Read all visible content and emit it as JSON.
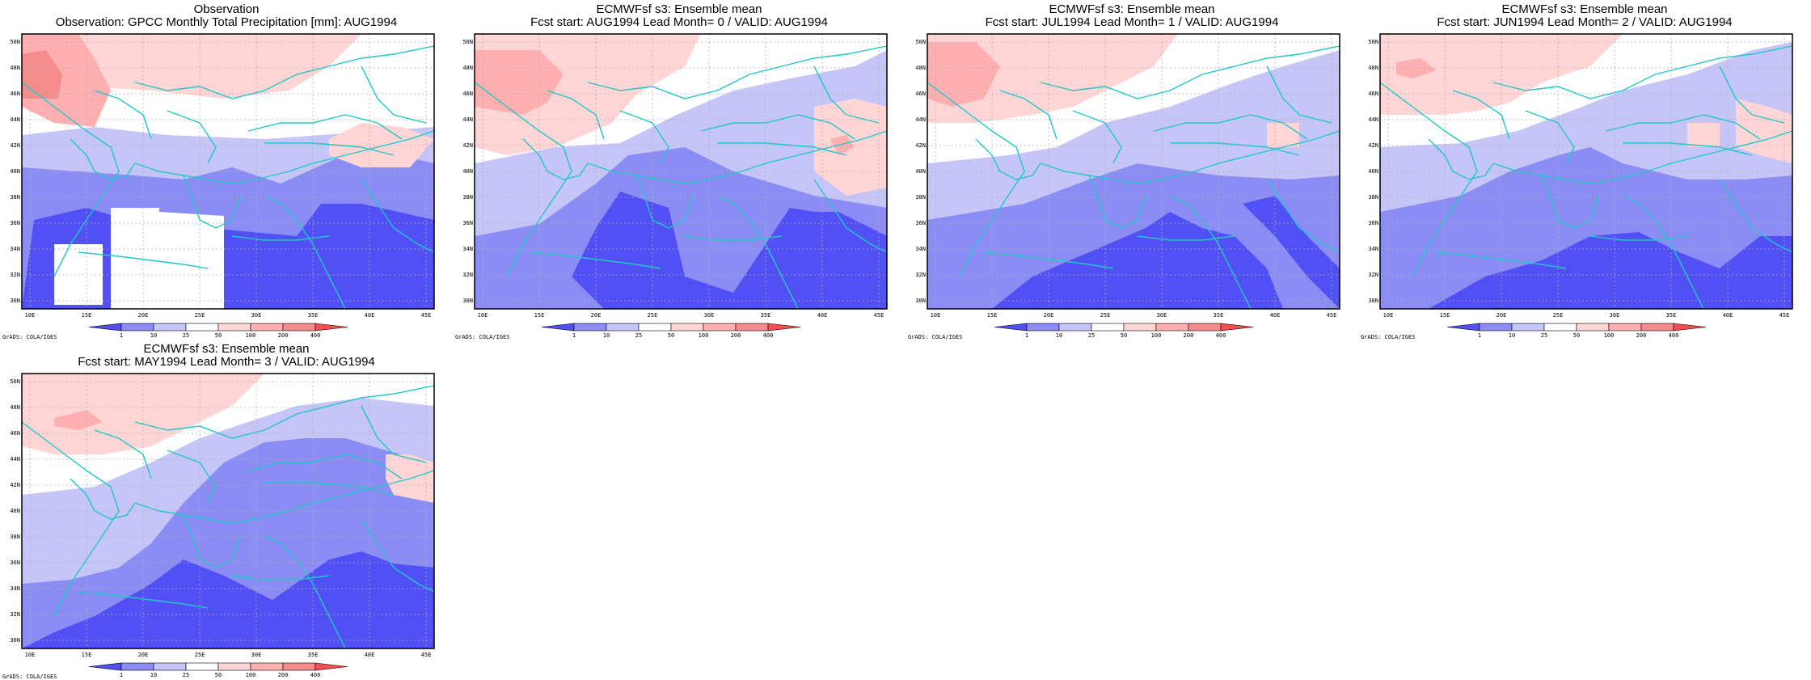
{
  "figure": {
    "colorbar": {
      "labels": [
        "1",
        "10",
        "25",
        "50",
        "100",
        "200",
        "400"
      ],
      "colors": [
        "#5050f5",
        "#8c8cf5",
        "#c5c5f8",
        "#ffffff",
        "#ffd5d5",
        "#ffafaf",
        "#f58c8c",
        "#f55050"
      ]
    },
    "credit": "GrADS: COLA/IGES",
    "lon_labels": [
      "10E",
      "15E",
      "20E",
      "25E",
      "30E",
      "35E",
      "40E",
      "45E"
    ],
    "lat_labels": [
      "50N",
      "48N",
      "46N",
      "44N",
      "42N",
      "40N",
      "38N",
      "36N",
      "34N",
      "32N",
      "30N"
    ],
    "panels": [
      {
        "title1": "Observation",
        "title2": "Observation: GPCC Monthly Total Precipitation [mm]: AUG1994"
      },
      {
        "title1": "ECMWFsf s3: Ensemble mean",
        "title2": "Fcst start: AUG1994   Lead Month= 0 / VALID: AUG1994"
      },
      {
        "title1": "ECMWFsf s3: Ensemble mean",
        "title2": "Fcst start: JUL1994   Lead Month= 1 / VALID: AUG1994"
      },
      {
        "title1": "ECMWFsf s3: Ensemble mean",
        "title2": "Fcst start: JUN1994   Lead Month= 2 / VALID: AUG1994"
      },
      {
        "title1": "ECMWFsf s3: Ensemble mean",
        "title2": "Fcst start: MAY1994   Lead Month= 3 / VALID: AUG1994"
      }
    ]
  }
}
